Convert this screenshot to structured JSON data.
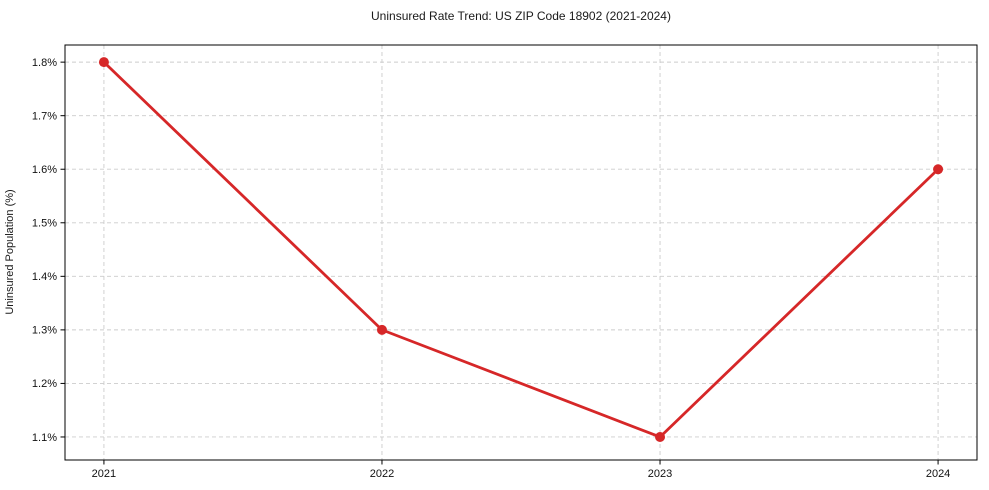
{
  "chart_data": {
    "type": "line",
    "title": "Uninsured Rate Trend: US ZIP Code 18902 (2021-2024)",
    "xlabel": "",
    "ylabel": "Uninsured Population (%)",
    "x": [
      2021,
      2022,
      2023,
      2024
    ],
    "series": [
      {
        "values": [
          1.8,
          1.3,
          1.1,
          1.6
        ],
        "color": "#d62728"
      }
    ],
    "x_ticks": [
      2021,
      2022,
      2023,
      2024
    ],
    "x_tick_labels": [
      "2021",
      "2022",
      "2023",
      "2024"
    ],
    "y_ticks": [
      1.1,
      1.2,
      1.3,
      1.4,
      1.5,
      1.6,
      1.7,
      1.8
    ],
    "y_tick_labels": [
      "1.1%",
      "1.2%",
      "1.3%",
      "1.4%",
      "1.5%",
      "1.6%",
      "1.7%",
      "1.8%"
    ],
    "xlim": [
      2020.86,
      2024.14
    ],
    "ylim": [
      1.057,
      1.832
    ],
    "grid": true,
    "grid_style": "dashed",
    "legend": "none",
    "marker": "circle",
    "colors": {
      "line": "#d62728",
      "marker": "#d62728",
      "grid": "#cccccc",
      "axis": "#000000",
      "text": "#111111",
      "background": "#ffffff"
    }
  }
}
